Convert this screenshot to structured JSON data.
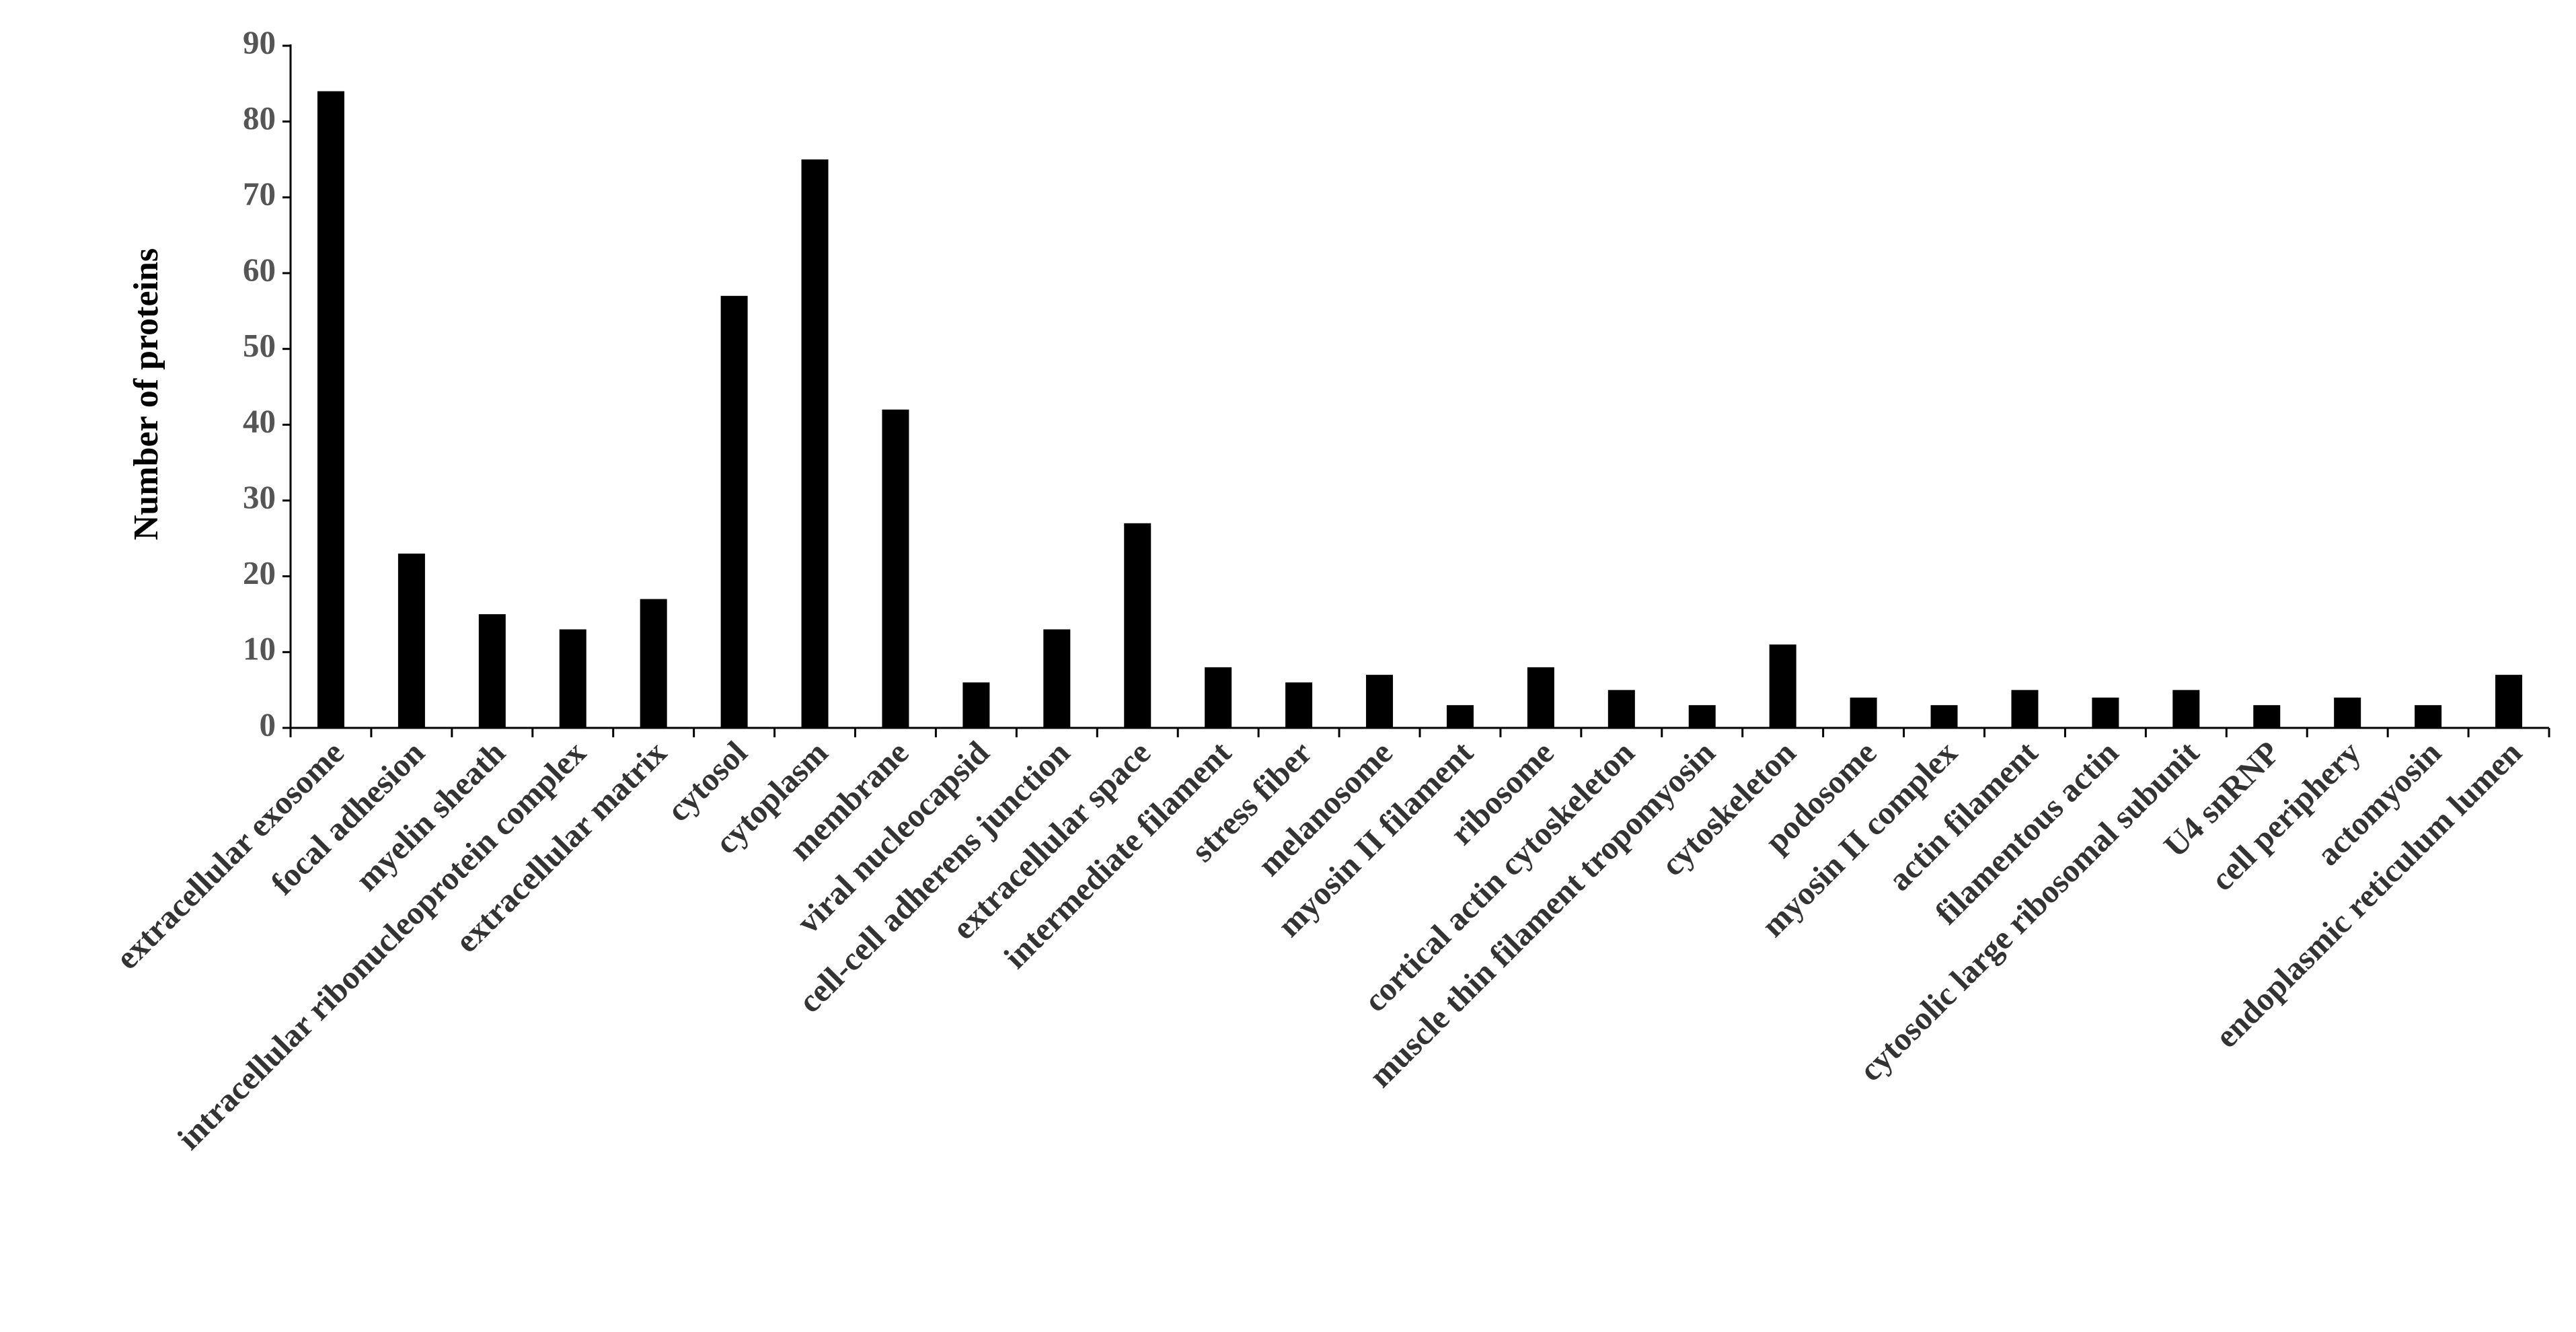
{
  "chart_data": {
    "type": "bar",
    "y_label": "Number of proteins",
    "categories": [
      "extracellular exosome",
      "focal adhesion",
      "myelin sheath",
      "intracellular ribonucleoprotein complex",
      "extracellular matrix",
      "cytosol",
      "cytoplasm",
      "membrane",
      "viral nucleocapsid",
      "cell-cell adherens junction",
      "extracellular space",
      "intermediate filament",
      "stress fiber",
      "melanosome",
      "myosin II filament",
      "ribosome",
      "cortical actin cytoskeleton",
      "muscle thin filament tropomyosin",
      "cytoskeleton",
      "podosome",
      "myosin II complex",
      "actin filament",
      "filamentous actin",
      "cytosolic large ribosomal subunit",
      "U4 snRNP",
      "cell periphery",
      "actomyosin",
      "endoplasmic reticulum lumen"
    ],
    "values": [
      84,
      23,
      15,
      13,
      17,
      57,
      75,
      42,
      6,
      13,
      27,
      8,
      6,
      7,
      3,
      8,
      5,
      3,
      11,
      4,
      3,
      5,
      4,
      5,
      3,
      4,
      3,
      7
    ],
    "color": "#000000",
    "ylim": [
      0,
      90
    ],
    "yticks": [
      0,
      10,
      20,
      30,
      40,
      50,
      60,
      70,
      80,
      90
    ],
    "grid": false
  }
}
